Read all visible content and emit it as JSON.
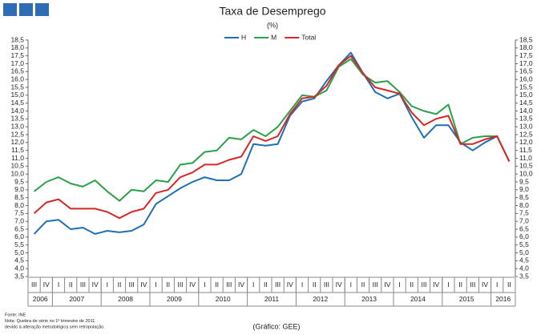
{
  "chart_data": {
    "type": "line",
    "title": "Taxa de Desemprego",
    "subtitle": "(%)",
    "categories": [
      "III",
      "IV",
      "I",
      "II",
      "III",
      "IV",
      "I",
      "II",
      "III",
      "IV",
      "I",
      "II",
      "III",
      "IV",
      "I",
      "II",
      "III",
      "IV",
      "I",
      "II",
      "III",
      "IV",
      "I",
      "II",
      "III",
      "IV",
      "I",
      "II",
      "III",
      "IV",
      "I",
      "II",
      "III",
      "IV",
      "I",
      "II",
      "III",
      "IV",
      "I",
      "II"
    ],
    "years": [
      "2006",
      "2007",
      "2008",
      "2009",
      "2010",
      "2011",
      "2012",
      "2013",
      "2014",
      "2015",
      "2016"
    ],
    "series": [
      {
        "name": "H",
        "color": "#1f6fb5",
        "values": [
          6.2,
          7.0,
          7.1,
          6.5,
          6.6,
          6.2,
          6.4,
          6.3,
          6.4,
          6.8,
          8.1,
          8.6,
          9.1,
          9.5,
          9.8,
          9.6,
          9.6,
          10.0,
          11.9,
          11.8,
          11.9,
          13.7,
          14.6,
          14.8,
          15.9,
          16.9,
          17.7,
          16.4,
          15.2,
          14.8,
          15.1,
          13.6,
          12.3,
          13.1,
          13.1,
          12.0,
          11.5,
          12.0,
          12.4,
          10.8
        ]
      },
      {
        "name": "M",
        "color": "#2aa04a",
        "values": [
          8.9,
          9.5,
          9.8,
          9.4,
          9.2,
          9.6,
          8.9,
          8.3,
          9.0,
          8.9,
          9.6,
          9.5,
          10.6,
          10.7,
          11.4,
          11.5,
          12.3,
          12.2,
          12.8,
          12.4,
          13.0,
          14.0,
          15.0,
          14.9,
          15.3,
          16.8,
          17.3,
          16.3,
          15.8,
          15.9,
          15.2,
          14.3,
          14.0,
          13.8,
          14.4,
          11.9,
          12.3,
          12.4,
          12.4,
          10.8
        ]
      },
      {
        "name": "Total",
        "color": "#d62728",
        "values": [
          7.5,
          8.2,
          8.4,
          7.8,
          7.8,
          7.8,
          7.6,
          7.2,
          7.6,
          7.8,
          8.8,
          9.0,
          9.8,
          10.1,
          10.6,
          10.6,
          10.9,
          11.1,
          12.4,
          12.1,
          12.4,
          13.8,
          14.8,
          14.9,
          15.6,
          16.9,
          17.5,
          16.4,
          15.5,
          15.3,
          15.1,
          13.9,
          13.1,
          13.5,
          13.7,
          11.9,
          11.9,
          12.2,
          12.4,
          10.8
        ]
      }
    ],
    "ylim": [
      3.5,
      18.5
    ],
    "yticks": [
      {
        "value": 3.5,
        "label": "3,5"
      },
      {
        "value": 4.0,
        "label": "4,0"
      },
      {
        "value": 4.5,
        "label": "4,5"
      },
      {
        "value": 5.0,
        "label": "5,0"
      },
      {
        "value": 5.5,
        "label": "5,5"
      },
      {
        "value": 6.0,
        "label": "6,0"
      },
      {
        "value": 6.5,
        "label": "6,5"
      },
      {
        "value": 7.0,
        "label": "7,0"
      },
      {
        "value": 7.5,
        "label": "7,5"
      },
      {
        "value": 8.0,
        "label": "8,0"
      },
      {
        "value": 8.5,
        "label": "8,5"
      },
      {
        "value": 9.0,
        "label": "9,0"
      },
      {
        "value": 9.5,
        "label": "9,5"
      },
      {
        "value": 10.0,
        "label": "10,0"
      },
      {
        "value": 10.5,
        "label": "10,5"
      },
      {
        "value": 11.0,
        "label": "11,0"
      },
      {
        "value": 11.5,
        "label": "11,5"
      },
      {
        "value": 12.0,
        "label": "12,0"
      },
      {
        "value": 12.5,
        "label": "12,5"
      },
      {
        "value": 13.0,
        "label": "13,0"
      },
      {
        "value": 13.5,
        "label": "13,5"
      },
      {
        "value": 14.0,
        "label": "14,0"
      },
      {
        "value": 14.5,
        "label": "14,5"
      },
      {
        "value": 15.0,
        "label": "15,0"
      },
      {
        "value": 15.5,
        "label": "15,5"
      },
      {
        "value": 16.0,
        "label": "16,0"
      },
      {
        "value": 16.5,
        "label": "16,5"
      },
      {
        "value": 17.0,
        "label": "17,0"
      },
      {
        "value": 17.5,
        "label": "17,5"
      },
      {
        "value": 18.0,
        "label": "18,0"
      },
      {
        "value": 18.5,
        "label": "18,5"
      }
    ],
    "notes": [
      "Fonte: INE",
      "Nota: Quebra de série no 1º trimestre de 2011",
      "devido à alteração metodológica sem retropolação."
    ],
    "credit": "(Gráfico: GEE)"
  }
}
